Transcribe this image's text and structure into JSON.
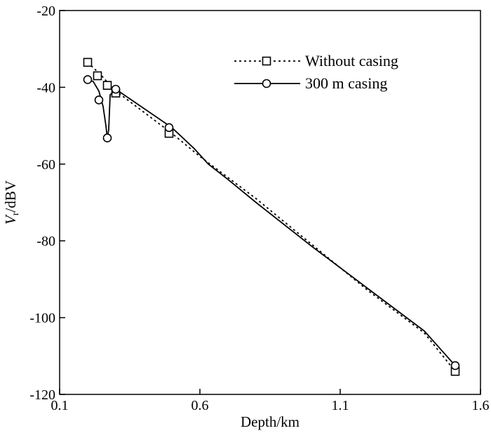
{
  "chart_data": {
    "type": "line",
    "xlabel": "Depth/km",
    "ylabel_main": "V",
    "ylabel_sub": "r",
    "ylabel_unit": "/dBV",
    "xlim": [
      0.1,
      1.6
    ],
    "ylim": [
      -120,
      -20
    ],
    "x_ticks": [
      0.1,
      0.6,
      1.1,
      1.6
    ],
    "x_tick_labels": [
      "0.1",
      "0.6",
      "1.1",
      "1.6"
    ],
    "y_ticks": [
      -120,
      -100,
      -80,
      -60,
      -40,
      -20
    ],
    "y_tick_labels": [
      "-120",
      "-100",
      "-80",
      "-60",
      "-40",
      "-20"
    ],
    "grid": false,
    "legend_position": "top-right",
    "series": [
      {
        "name": "Without casing",
        "line_style": "dashed",
        "marker": "square",
        "color": "#000000",
        "line": [
          [
            0.2,
            -33.5
          ],
          [
            0.25,
            -37
          ],
          [
            0.28,
            -39.5
          ],
          [
            0.31,
            -41.5
          ],
          [
            0.5,
            -52
          ],
          [
            0.6,
            -58
          ],
          [
            0.8,
            -69
          ],
          [
            1.0,
            -81
          ],
          [
            1.2,
            -93
          ],
          [
            1.4,
            -104
          ],
          [
            1.51,
            -114
          ]
        ],
        "markers": [
          [
            0.2,
            -33.5
          ],
          [
            0.235,
            -37
          ],
          [
            0.27,
            -39.5
          ],
          [
            0.3,
            -41.5
          ],
          [
            0.49,
            -52
          ],
          [
            1.51,
            -114
          ]
        ]
      },
      {
        "name": "300 m casing",
        "line_style": "solid",
        "marker": "circle",
        "color": "#000000",
        "line": [
          [
            0.2,
            -38
          ],
          [
            0.22,
            -38.5
          ],
          [
            0.24,
            -41
          ],
          [
            0.255,
            -45
          ],
          [
            0.265,
            -50
          ],
          [
            0.27,
            -53.2
          ],
          [
            0.275,
            -51
          ],
          [
            0.28,
            -42
          ],
          [
            0.3,
            -40.5
          ],
          [
            0.35,
            -43
          ],
          [
            0.5,
            -50.5
          ],
          [
            0.58,
            -56
          ],
          [
            0.63,
            -60
          ],
          [
            0.7,
            -64
          ],
          [
            0.8,
            -70
          ],
          [
            1.0,
            -81.5
          ],
          [
            1.2,
            -92.5
          ],
          [
            1.4,
            -103.5
          ],
          [
            1.51,
            -112.5
          ]
        ],
        "markers": [
          [
            0.2,
            -38
          ],
          [
            0.24,
            -43.3
          ],
          [
            0.27,
            -53.2
          ],
          [
            0.3,
            -40.5
          ],
          [
            0.49,
            -50.5
          ],
          [
            1.51,
            -112.5
          ]
        ]
      }
    ]
  }
}
